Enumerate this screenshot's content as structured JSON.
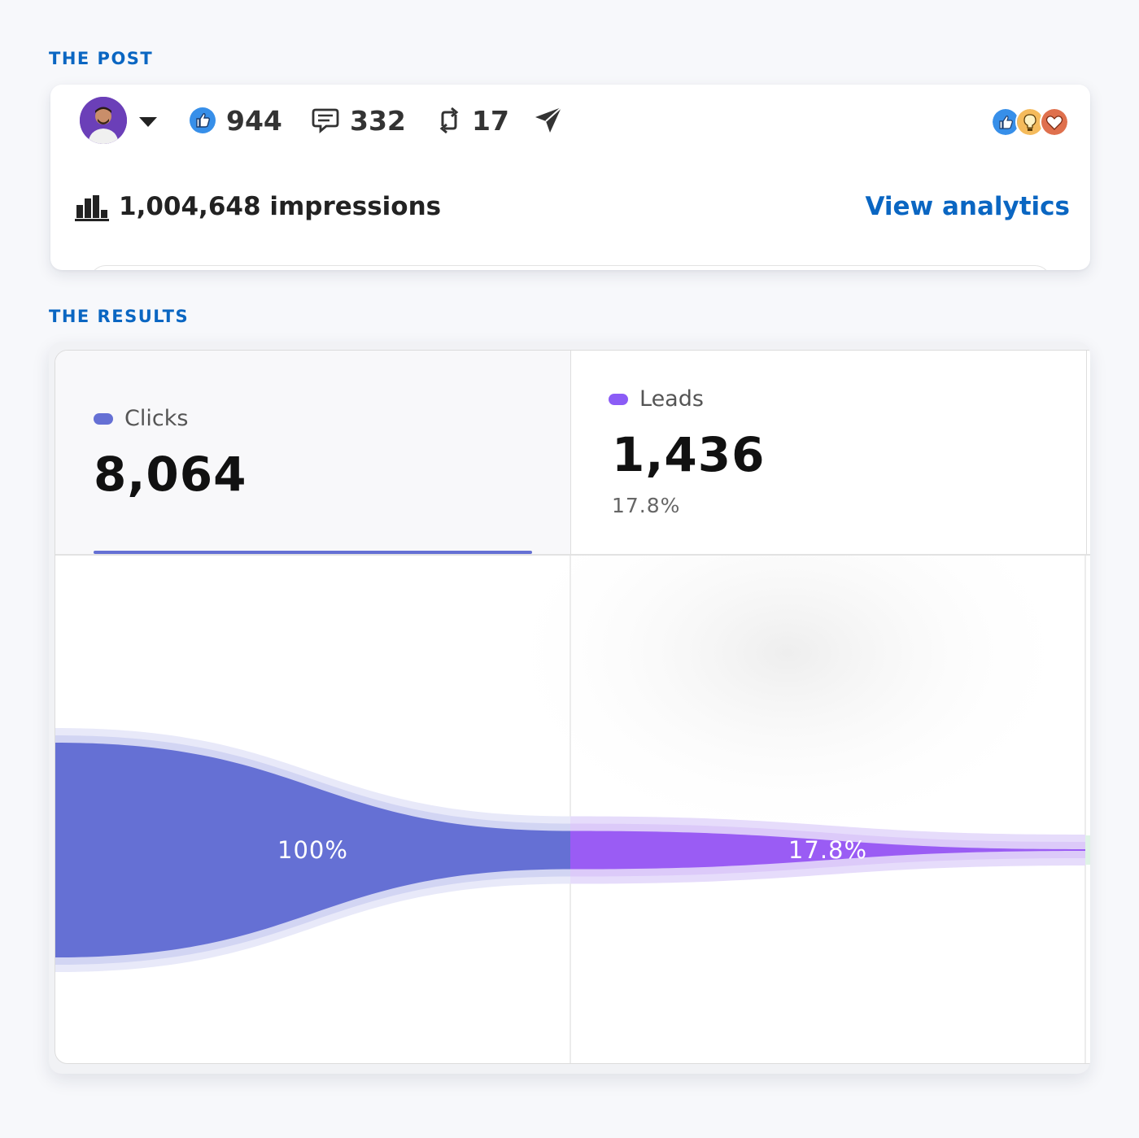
{
  "sections": {
    "post_label": "THE POST",
    "results_label": "THE RESULTS"
  },
  "post": {
    "likes": "944",
    "comments": "332",
    "reposts": "17",
    "impressions": "1,004,648 impressions",
    "view_analytics": "View analytics",
    "icons": [
      "avatar",
      "caret-down-icon",
      "like-icon",
      "comment-icon",
      "repost-icon",
      "send-icon",
      "like-reaction-icon",
      "insightful-reaction-icon",
      "love-reaction-icon",
      "bar-chart-icon"
    ]
  },
  "results": {
    "tabs": [
      {
        "label": "Clicks",
        "value": "8,064",
        "dot_color": "#6570d4",
        "selected": true
      },
      {
        "label": "Leads",
        "value": "1,436",
        "pct": "17.8%",
        "dot_color": "#8b5cf6",
        "selected": false
      }
    ]
  },
  "chart_data": {
    "type": "funnel",
    "stages": [
      {
        "name": "Clicks",
        "value": 8064,
        "pct_label": "100%",
        "color": "#6570d4"
      },
      {
        "name": "Leads",
        "value": 1436,
        "pct_label": "17.8%",
        "color": "#9a5cf4"
      }
    ]
  }
}
